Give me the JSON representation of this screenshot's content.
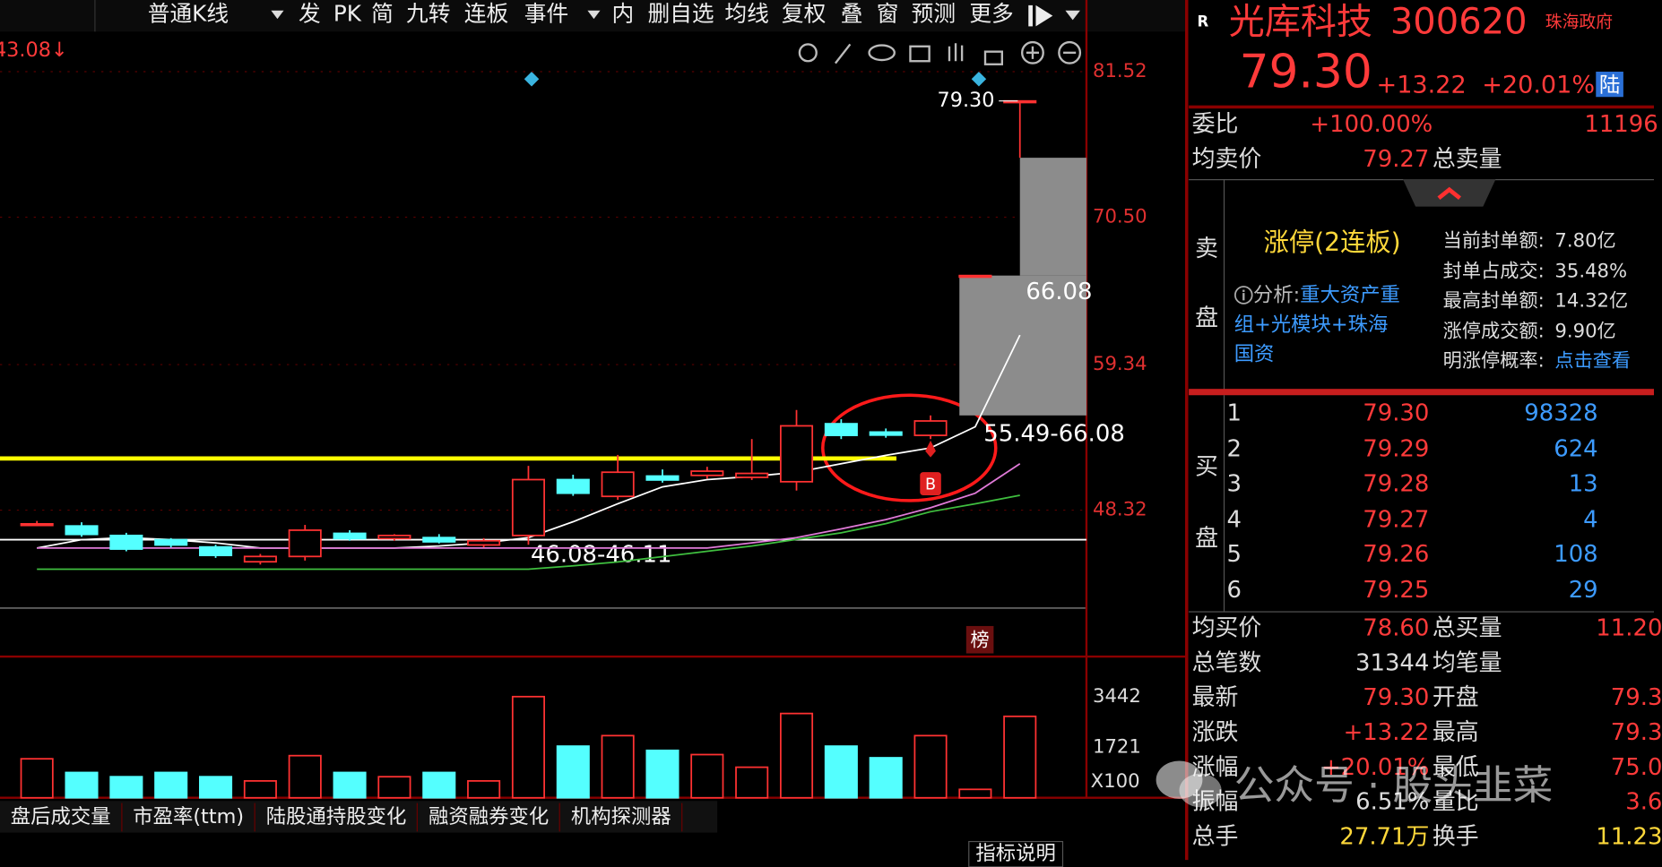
{
  "toolbar": {
    "items": [
      "普通K线",
      "发",
      "PK",
      "简",
      "九转",
      "连板",
      "事件",
      "内",
      "删自选",
      "均线",
      "复权",
      "叠",
      "窗",
      "预测",
      "更多"
    ]
  },
  "chart_data": [
    {
      "type": "candlestick",
      "low_label": "43.08↓",
      "high_label": "79.30",
      "open": [
        47.28,
        47.12,
        46.4,
        46.08,
        45.53,
        44.41,
        44.81,
        46.56,
        46.16,
        46.24,
        45.68,
        46.4,
        50.63,
        49.36,
        50.9,
        50.95,
        50.8,
        50.47,
        54.86,
        54.23,
        53.98,
        66.08,
        79.3
      ],
      "high": [
        47.5,
        47.4,
        46.6,
        46.2,
        45.7,
        45.0,
        47.2,
        46.8,
        46.5,
        46.5,
        46.2,
        51.67,
        51.0,
        52.5,
        51.4,
        51.6,
        53.7,
        55.9,
        55.2,
        54.5,
        55.49,
        66.08,
        79.3
      ],
      "low": [
        47.1,
        46.3,
        45.2,
        45.5,
        44.7,
        44.2,
        44.5,
        46.0,
        46.0,
        45.8,
        45.5,
        45.7,
        49.4,
        49.1,
        50.4,
        50.7,
        50.6,
        49.8,
        53.7,
        53.8,
        53.7,
        66.08,
        75.0
      ],
      "close": [
        47.28,
        46.48,
        45.37,
        45.68,
        44.89,
        44.81,
        46.8,
        46.16,
        46.4,
        45.92,
        46.0,
        50.63,
        49.6,
        51.19,
        50.6,
        51.27,
        51.1,
        54.7,
        53.98,
        54.0,
        55.07,
        66.08,
        79.3
      ],
      "ma": [
        {
          "color": "#ffffff",
          "values": [
            45.45,
            46.08,
            46.24,
            46.08,
            45.84,
            45.45,
            45.45,
            45.45,
            45.45,
            45.6,
            45.84,
            46.24,
            47.44,
            48.8,
            50.08,
            50.63,
            50.87,
            51.19,
            51.83,
            52.47,
            53.03,
            54.63,
            61.57
          ]
        },
        {
          "color": "#e07ad8",
          "values": [
            45.45,
            45.45,
            45.45,
            45.45,
            45.45,
            45.45,
            45.45,
            45.45,
            45.45,
            45.45,
            45.45,
            45.45,
            45.45,
            45.45,
            45.45,
            45.45,
            45.84,
            46.24,
            46.9,
            47.6,
            48.5,
            49.6,
            51.83
          ]
        },
        {
          "color": "#3fbf3f",
          "values": [
            43.85,
            43.85,
            43.85,
            43.85,
            43.85,
            43.85,
            43.85,
            43.85,
            43.85,
            43.85,
            43.85,
            43.85,
            44.1,
            44.4,
            44.8,
            45.2,
            45.6,
            46.1,
            46.6,
            47.3,
            48.2,
            48.8,
            49.44
          ]
        }
      ],
      "hlines": [
        {
          "value": 52.23,
          "color": "#ffff00"
        },
        {
          "value": 46.08,
          "color": "#ffffff",
          "label": "46.08-46.11"
        }
      ],
      "gaps": [
        {
          "low": 55.49,
          "high": 66.08,
          "label": "55.49-66.08",
          "top_label": "66.08"
        },
        {
          "low": 66.08,
          "high": 75.0
        }
      ],
      "ylim": [
        37.47,
        84.55
      ],
      "yticks": [
        81.52,
        {
          "value": 70.5,
          "label": "70.50"
        },
        59.34,
        48.32
      ],
      "grid": true
    },
    {
      "type": "bar",
      "values": [
        1327,
        861,
        717,
        861,
        717,
        574,
        1434,
        861,
        717,
        861,
        574,
        3442,
        1757,
        2115,
        1613,
        1470,
        1040,
        2868,
        1757,
        1362,
        2115,
        287,
        2771
      ],
      "ylim": [
        0,
        4554
      ],
      "yticks": [
        3442,
        1721
      ],
      "unit_label": "X100"
    }
  ],
  "tabs": [
    "盘后成交量",
    "市盈率(ttm)",
    "陆股通持股变化",
    "融资融券变化",
    "机构探测器"
  ],
  "indicator_help": "指标说明",
  "badges": {
    "buy": "B",
    "rank": "榜"
  },
  "quote": {
    "flag": "R",
    "name": "光库科技",
    "code": "300620",
    "tag": "珠海政府",
    "price": "79.30",
    "change": "+13.22",
    "change_pct": "+20.01%",
    "market": "陆",
    "weibi": {
      "label": "委比",
      "value": "+100.00%",
      "extra": "11196"
    },
    "avg_sell": {
      "label": "均卖价",
      "value": "79.27",
      "label2": "总卖量"
    },
    "sell_side": [
      "卖",
      "盘"
    ],
    "limit": {
      "title": "涨停(2连板)",
      "analysis_label": "分析:",
      "analysis": "重大资产重组+光模块+珠海国资",
      "items": [
        [
          "当前封单额:",
          "7.80亿"
        ],
        [
          "封单占成交:",
          "35.48%"
        ],
        [
          "最高封单额:",
          "14.32亿"
        ],
        [
          "涨停成交额:",
          "9.90亿"
        ],
        [
          "明涨停概率:",
          "点击查看"
        ]
      ]
    },
    "buy_side": [
      "买",
      "盘"
    ],
    "bids": [
      [
        "1",
        "79.30",
        "98328"
      ],
      [
        "2",
        "79.29",
        "624"
      ],
      [
        "3",
        "79.28",
        "13"
      ],
      [
        "4",
        "79.27",
        "4"
      ],
      [
        "5",
        "79.26",
        "108"
      ],
      [
        "6",
        "79.25",
        "29"
      ]
    ],
    "stats": [
      [
        "均买价",
        "78.60",
        "总买量",
        "11.20"
      ],
      [
        "总笔数",
        "31344",
        "均笔量"
      ],
      [
        "最新",
        "79.30",
        "开盘",
        "79.3"
      ],
      [
        "涨跌",
        "+13.22",
        "最高",
        "79.3"
      ],
      [
        "涨幅",
        "+20.01%",
        "最低",
        "75.0"
      ],
      [
        "振幅",
        "6.51%",
        "量比",
        "3.6"
      ],
      [
        "总手",
        "27.71万",
        "换手",
        "11.23"
      ]
    ]
  },
  "watermark": "公众号 · 股头韭菜"
}
